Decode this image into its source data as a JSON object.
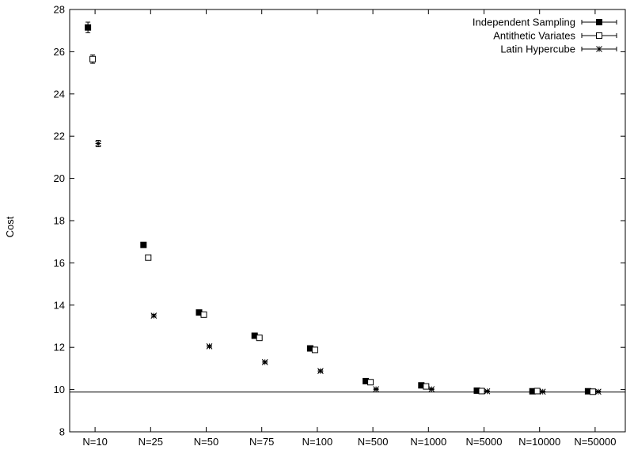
{
  "chart_data": {
    "type": "scatter",
    "title": "",
    "xlabel": "",
    "ylabel": "Cost",
    "ylim": [
      8,
      28
    ],
    "yticks": [
      8,
      10,
      12,
      14,
      16,
      18,
      20,
      22,
      24,
      26,
      28
    ],
    "categories": [
      "N=10",
      "N=25",
      "N=50",
      "N=75",
      "N=100",
      "N=500",
      "N=1000",
      "N=5000",
      "N=10000",
      "N=50000"
    ],
    "reference_line": 9.88,
    "legend_position": "top-right",
    "series": [
      {
        "name": "Independent Sampling",
        "marker": "filled-square",
        "values": [
          27.15,
          16.85,
          13.65,
          12.55,
          11.95,
          10.4,
          10.2,
          9.95,
          9.92,
          9.92
        ],
        "errors": [
          0.25,
          0.12,
          0.08,
          0.07,
          0.07,
          0.05,
          0.05,
          0.04,
          0.04,
          0.04
        ]
      },
      {
        "name": "Antithetic Variates",
        "marker": "open-square",
        "values": [
          25.65,
          16.25,
          13.55,
          12.45,
          11.88,
          10.35,
          10.15,
          9.93,
          9.93,
          9.9
        ],
        "errors": [
          0.2,
          0.1,
          0.07,
          0.07,
          0.07,
          0.05,
          0.05,
          0.04,
          0.04,
          0.04
        ]
      },
      {
        "name": "Latin Hypercube",
        "marker": "star",
        "values": [
          21.65,
          13.5,
          12.05,
          11.3,
          10.88,
          10.02,
          10.02,
          9.92,
          9.9,
          9.9
        ],
        "errors": [
          0.15,
          0.06,
          0.05,
          0.05,
          0.05,
          0.03,
          0.03,
          0.03,
          0.03,
          0.03
        ]
      }
    ]
  }
}
